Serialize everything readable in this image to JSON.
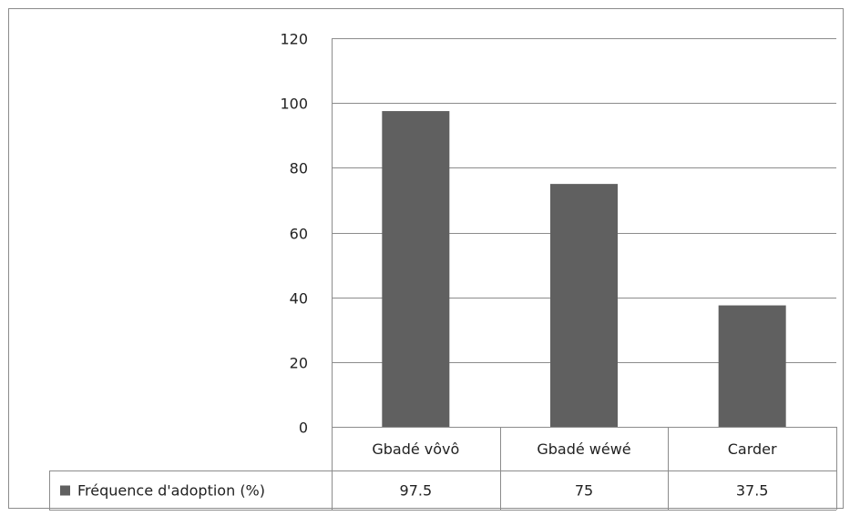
{
  "chart_data": {
    "type": "bar",
    "categories": [
      "Gbadé vôvô",
      "Gbadé wéwé",
      "Carder"
    ],
    "series": [
      {
        "name": "Fréquence d'adoption (%)",
        "values": [
          97.5,
          75,
          37.5
        ],
        "color": "#606060"
      }
    ],
    "ylim": [
      0,
      120
    ],
    "yticks": [
      0,
      20,
      40,
      60,
      80,
      100,
      120
    ],
    "table_values": [
      "97.5",
      "75",
      "37.5"
    ],
    "legend_position": "data-table",
    "grid": true,
    "title": "",
    "xlabel": "",
    "ylabel": ""
  }
}
